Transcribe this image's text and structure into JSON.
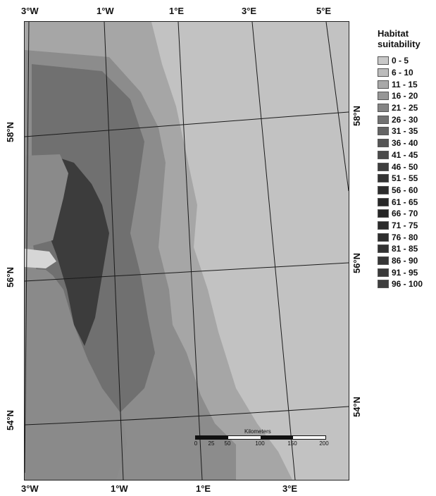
{
  "map": {
    "top_lon_labels": [
      "3°W",
      "1°W",
      "1°E",
      "3°E",
      "5°E"
    ],
    "bottom_lon_labels": [
      "3°W",
      "1°W",
      "1°E",
      "3°E"
    ],
    "left_lat_labels": [
      "58°N",
      "56°N",
      "54°N"
    ],
    "right_lat_labels": [
      "58°N",
      "56°N",
      "54°N"
    ]
  },
  "legend": {
    "title_line1": "Habitat",
    "title_line2": "suitability",
    "items": [
      {
        "label": "0 - 5",
        "color": "#c8c8c8"
      },
      {
        "label": "6 - 10",
        "color": "#bcbcbc"
      },
      {
        "label": "11 - 15",
        "color": "#a8a8a8"
      },
      {
        "label": "16 - 20",
        "color": "#969696"
      },
      {
        "label": "21 - 25",
        "color": "#848484"
      },
      {
        "label": "26 - 30",
        "color": "#727272"
      },
      {
        "label": "31 - 35",
        "color": "#646464"
      },
      {
        "label": "36 - 40",
        "color": "#565656"
      },
      {
        "label": "41 - 45",
        "color": "#4a4a4a"
      },
      {
        "label": "46 - 50",
        "color": "#3e3e3e"
      },
      {
        "label": "51 - 55",
        "color": "#333333"
      },
      {
        "label": "56 - 60",
        "color": "#2c2c2c"
      },
      {
        "label": "61 - 65",
        "color": "#282828"
      },
      {
        "label": "66 - 70",
        "color": "#262626"
      },
      {
        "label": "71 - 75",
        "color": "#2a2a2a"
      },
      {
        "label": "76 - 80",
        "color": "#2e2e2e"
      },
      {
        "label": "81 - 85",
        "color": "#323232"
      },
      {
        "label": "86 - 90",
        "color": "#363636"
      },
      {
        "label": "91 - 95",
        "color": "#3a3a3a"
      },
      {
        "label": "96 - 100",
        "color": "#3e3e3e"
      }
    ]
  },
  "scalebar": {
    "title": "Kilometers",
    "ticks": [
      "0",
      "25",
      "50",
      "100",
      "150",
      "200"
    ]
  },
  "colors": {
    "sea_low": "#c2c2c2",
    "sea_mid": "#a2a2a2",
    "sea_high": "#6e6e6e",
    "coastal_dark": "#3c3c3c",
    "land": "#8a8a8a",
    "graticule": "#1a1a1a"
  }
}
